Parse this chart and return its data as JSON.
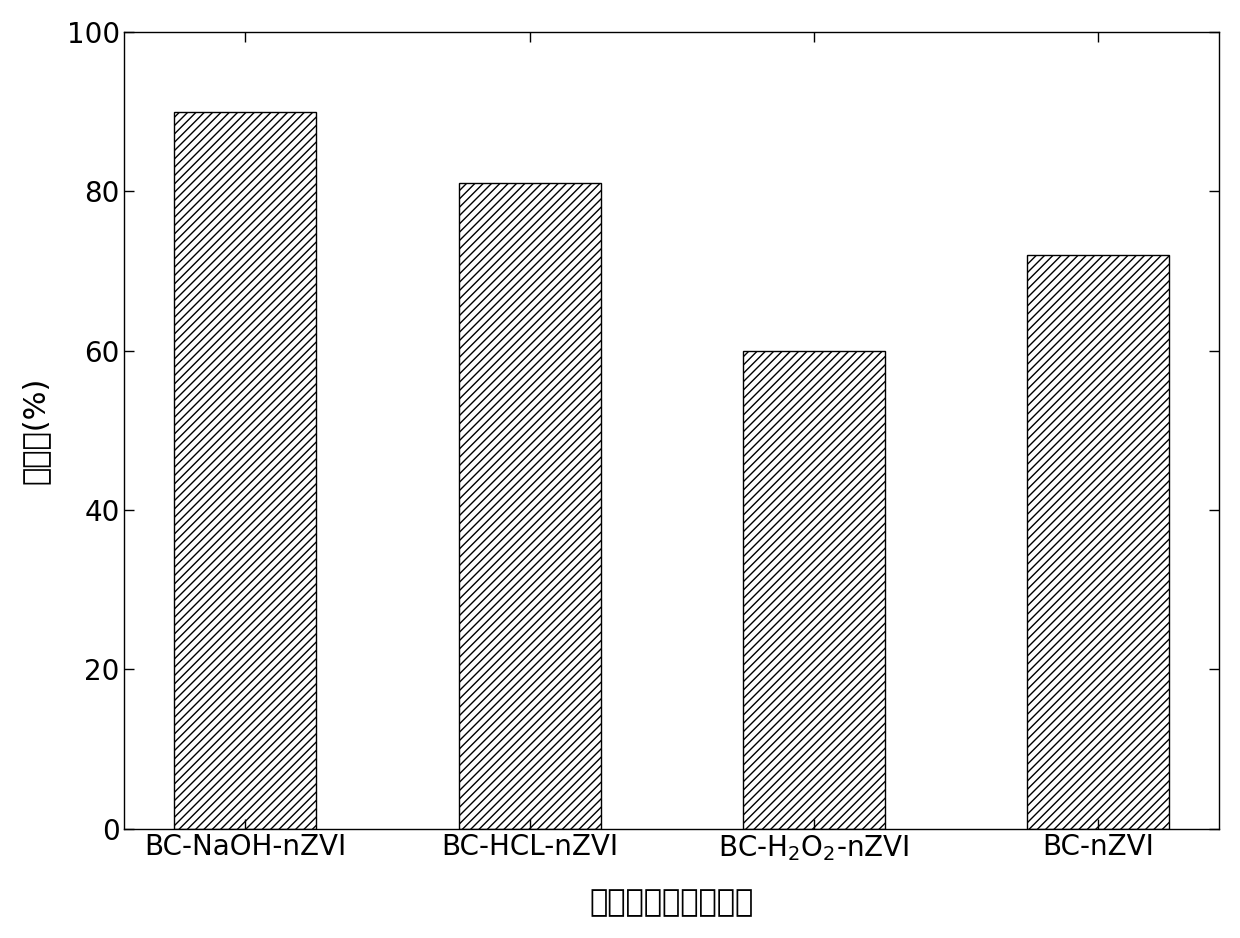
{
  "categories": [
    "BC-NaOH-nZVI",
    "BC-HCL-nZVI",
    "BC-H2O2-nZVI",
    "BC-nZVI"
  ],
  "values": [
    90,
    81,
    60,
    72
  ],
  "ylabel": "吸附率(%)",
  "xlabel": "不同改性方法的样品",
  "ylim": [
    0,
    100
  ],
  "yticks": [
    0,
    20,
    40,
    60,
    80,
    100
  ],
  "bar_color": "white",
  "bar_edgecolor": "#000000",
  "hatch_pattern": "////",
  "background_color": "white",
  "bar_width": 0.5,
  "tick_fontsize": 20,
  "ylabel_fontsize": 22,
  "xlabel_fontsize": 22
}
